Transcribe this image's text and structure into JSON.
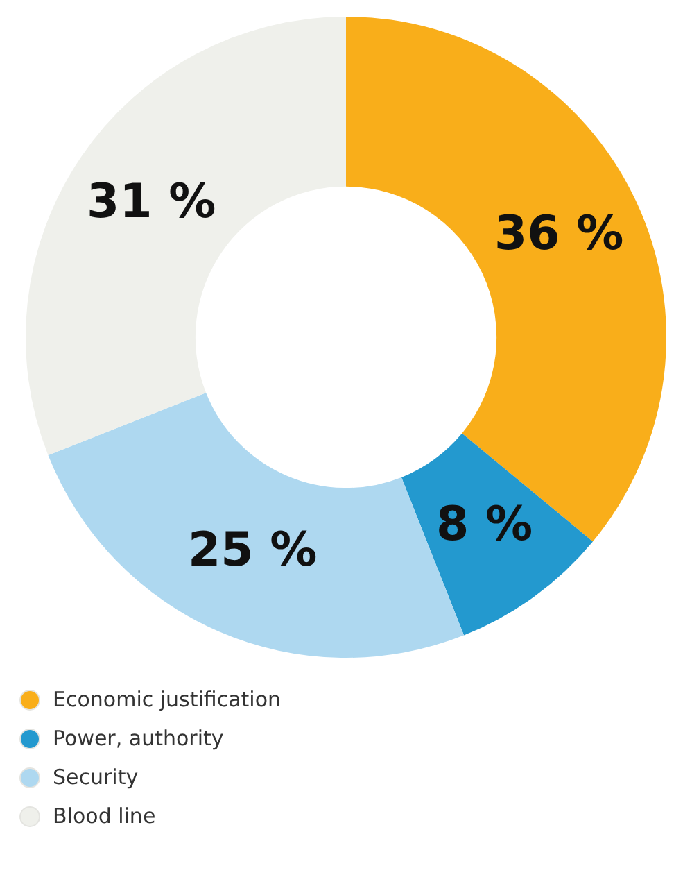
{
  "chart_data": {
    "type": "donut",
    "categories": [
      "Economic justification",
      "Power, authority",
      "Security",
      "Blood line"
    ],
    "values": [
      36,
      8,
      25,
      31
    ],
    "colors": [
      "#f9ae1a",
      "#2399cf",
      "#aed8f0",
      "#eff0eb"
    ],
    "value_labels": [
      "36 %",
      "8 %",
      "25 %",
      "31 %"
    ],
    "legend": "bottom left"
  }
}
